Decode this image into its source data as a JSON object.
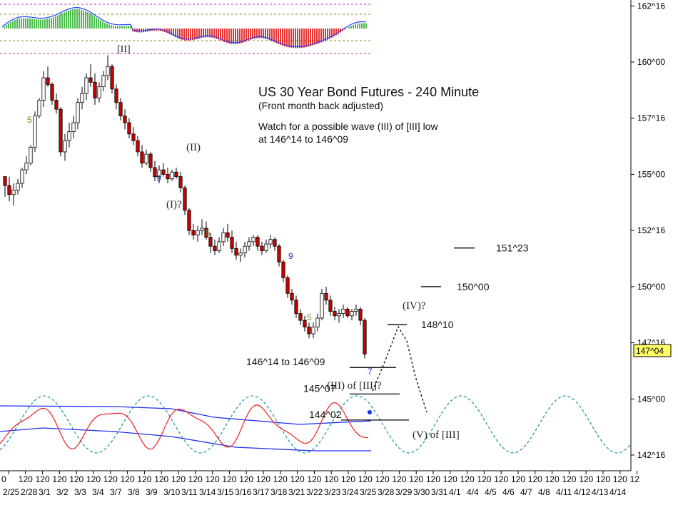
{
  "chart_data": {
    "type": "candlestick",
    "title": "US 30 Year Bond Futures - 240 Minute",
    "subtitle": "(Front month back adjusted)",
    "note_lines": [
      "Watch for a possible wave (III) of [III] low",
      "at 146^14 to 146^09"
    ],
    "y_ticks": [
      {
        "label": "162^16",
        "value": 162.5
      },
      {
        "label": "160^00",
        "value": 160.0
      },
      {
        "label": "157^16",
        "value": 157.5
      },
      {
        "label": "155^00",
        "value": 155.0
      },
      {
        "label": "152^16",
        "value": 152.5
      },
      {
        "label": "150^00",
        "value": 150.0
      },
      {
        "label": "147^16",
        "value": 147.5
      },
      {
        "label": "145^00",
        "value": 145.0
      },
      {
        "label": "142^16",
        "value": 142.5
      }
    ],
    "current_price": {
      "label": "147^04",
      "value": 147.125
    },
    "x_ticks_top": [
      "0",
      "120",
      "120",
      "120",
      "120",
      "120",
      "120",
      "120",
      "120",
      "120",
      "120",
      "120",
      "120",
      "120",
      "120",
      "120",
      "120",
      "120",
      "120",
      "120",
      "120",
      "120",
      "120",
      "120",
      "120",
      "120",
      "120",
      "120",
      "120",
      "120",
      "120",
      "120",
      "120",
      "120",
      "120",
      "120",
      "120",
      "12"
    ],
    "x_ticks_bottom": [
      "2/25",
      "2/28",
      "3/1",
      "3/2",
      "3/3",
      "3/4",
      "3/7",
      "3/8",
      "3/9",
      "3/10",
      "3/11",
      "3/14",
      "3/15",
      "3/16",
      "3/17",
      "3/18",
      "3/21",
      "3/22",
      "3/23",
      "3/24",
      "3/25",
      "3/28",
      "3/29",
      "3/30",
      "3/31",
      "4/1",
      "4/4",
      "4/5",
      "4/6",
      "4/7",
      "4/8",
      "4/11",
      "4/12",
      "4/13",
      "4/14"
    ],
    "price_levels": [
      {
        "label": "151^23",
        "value": 151.72
      },
      {
        "label": "150^00",
        "value": 150.0
      },
      {
        "label": "148^10",
        "value": 148.31
      },
      {
        "label": "146^14 to 146^09",
        "value": 146.4
      },
      {
        "label": "145^07",
        "value": 145.22
      },
      {
        "label": "144^02",
        "value": 144.06
      }
    ],
    "wave_labels": [
      "[II]",
      "(II)",
      "(I)?",
      "(IV)?",
      "(III) of [III]?",
      "(V) of [III]"
    ],
    "count_labels": [
      "5",
      "9",
      "5",
      "9",
      "5",
      "7"
    ],
    "candles": [
      [
        154.9,
        154.9,
        154.0,
        154.5
      ],
      [
        154.5,
        154.9,
        153.8,
        154.1
      ],
      [
        154.1,
        154.6,
        153.6,
        154.3
      ],
      [
        154.3,
        154.8,
        154.1,
        154.6
      ],
      [
        154.6,
        155.3,
        154.4,
        155.2
      ],
      [
        155.2,
        155.8,
        155.0,
        155.5
      ],
      [
        155.5,
        156.3,
        155.4,
        156.2
      ],
      [
        156.2,
        157.8,
        156.0,
        157.6
      ],
      [
        157.6,
        158.4,
        157.5,
        158.3
      ],
      [
        158.3,
        159.6,
        158.0,
        159.3
      ],
      [
        159.3,
        159.8,
        158.9,
        159.0
      ],
      [
        159.0,
        159.1,
        158.1,
        158.3
      ],
      [
        158.3,
        158.6,
        157.7,
        157.9
      ],
      [
        157.9,
        158.0,
        155.8,
        156.0
      ],
      [
        156.0,
        156.8,
        155.6,
        156.5
      ],
      [
        156.5,
        157.3,
        156.2,
        156.9
      ],
      [
        156.9,
        157.6,
        156.6,
        157.3
      ],
      [
        157.3,
        158.4,
        157.0,
        158.2
      ],
      [
        158.2,
        158.9,
        157.9,
        158.6
      ],
      [
        158.6,
        159.5,
        158.3,
        159.3
      ],
      [
        159.3,
        159.9,
        158.9,
        159.1
      ],
      [
        159.1,
        159.5,
        158.1,
        158.4
      ],
      [
        158.4,
        159.1,
        158.2,
        158.9
      ],
      [
        158.9,
        159.6,
        158.7,
        159.4
      ],
      [
        159.4,
        160.3,
        159.2,
        159.8
      ],
      [
        159.8,
        159.9,
        158.6,
        158.8
      ],
      [
        158.8,
        159.0,
        157.9,
        158.2
      ],
      [
        158.2,
        158.4,
        157.4,
        157.6
      ],
      [
        157.6,
        157.9,
        157.0,
        157.3
      ],
      [
        157.3,
        157.5,
        156.6,
        156.8
      ],
      [
        156.8,
        157.1,
        156.3,
        156.5
      ],
      [
        156.5,
        156.7,
        155.8,
        156.0
      ],
      [
        156.0,
        156.3,
        155.3,
        155.5
      ],
      [
        155.5,
        156.1,
        155.4,
        155.9
      ],
      [
        155.9,
        156.0,
        155.1,
        155.3
      ],
      [
        155.3,
        155.6,
        154.7,
        154.9
      ],
      [
        154.9,
        155.4,
        154.6,
        155.2
      ],
      [
        155.2,
        155.5,
        154.9,
        155.0
      ],
      [
        155.0,
        155.3,
        154.6,
        154.8
      ],
      [
        154.8,
        155.2,
        154.7,
        155.1
      ],
      [
        155.1,
        155.3,
        154.8,
        154.9
      ],
      [
        154.9,
        155.1,
        154.2,
        154.4
      ],
      [
        154.4,
        154.5,
        153.2,
        153.4
      ],
      [
        153.4,
        153.5,
        152.3,
        152.5
      ],
      [
        152.5,
        152.8,
        152.1,
        152.3
      ],
      [
        152.3,
        152.7,
        152.0,
        152.5
      ],
      [
        152.5,
        153.0,
        152.3,
        152.6
      ],
      [
        152.6,
        152.9,
        152.1,
        152.2
      ],
      [
        152.2,
        152.4,
        151.5,
        151.8
      ],
      [
        151.8,
        152.1,
        151.4,
        151.6
      ],
      [
        151.6,
        152.2,
        151.5,
        152.0
      ],
      [
        152.0,
        152.6,
        151.8,
        152.4
      ],
      [
        152.4,
        152.8,
        152.0,
        152.2
      ],
      [
        152.2,
        152.5,
        151.5,
        151.7
      ],
      [
        151.7,
        152.0,
        151.2,
        151.4
      ],
      [
        151.4,
        151.7,
        151.1,
        151.5
      ],
      [
        151.5,
        152.0,
        151.3,
        151.8
      ],
      [
        151.8,
        152.2,
        151.6,
        152.0
      ],
      [
        152.0,
        152.3,
        151.8,
        152.2
      ],
      [
        152.2,
        152.3,
        151.6,
        151.8
      ],
      [
        151.8,
        152.0,
        151.4,
        151.6
      ],
      [
        151.6,
        152.1,
        151.5,
        151.9
      ],
      [
        151.9,
        152.3,
        151.7,
        152.1
      ],
      [
        152.1,
        152.2,
        151.6,
        151.8
      ],
      [
        151.8,
        151.9,
        150.9,
        151.1
      ],
      [
        151.1,
        151.2,
        150.2,
        150.4
      ],
      [
        150.4,
        150.5,
        149.5,
        149.7
      ],
      [
        149.7,
        149.9,
        149.2,
        149.4
      ],
      [
        149.4,
        149.6,
        148.6,
        148.8
      ],
      [
        148.8,
        149.0,
        148.3,
        148.5
      ],
      [
        148.5,
        148.7,
        148.0,
        148.2
      ],
      [
        148.2,
        148.4,
        147.7,
        147.9
      ],
      [
        147.9,
        148.4,
        147.7,
        148.2
      ],
      [
        148.2,
        148.8,
        148.0,
        148.6
      ],
      [
        148.6,
        149.9,
        148.5,
        149.7
      ],
      [
        149.7,
        150.0,
        149.2,
        149.4
      ],
      [
        149.4,
        149.6,
        148.7,
        148.9
      ],
      [
        148.9,
        149.1,
        148.5,
        148.7
      ],
      [
        148.7,
        149.0,
        148.4,
        148.8
      ],
      [
        148.8,
        149.2,
        148.6,
        149.0
      ],
      [
        149.0,
        149.1,
        148.6,
        148.7
      ],
      [
        148.7,
        149.0,
        148.5,
        148.9
      ],
      [
        148.9,
        149.2,
        148.7,
        149.0
      ],
      [
        149.0,
        149.1,
        148.3,
        148.5
      ],
      [
        148.5,
        148.6,
        146.8,
        147.0
      ]
    ],
    "projection_path": [
      [
        148.3,
        0
      ],
      [
        147.1,
        1
      ],
      [
        145.9,
        2
      ],
      [
        144.8,
        3
      ]
    ],
    "histogram_upper": "MACD histogram (green above zero, red below)",
    "oscillator_panel": {
      "sine_cycle": "dashed teal",
      "bands": "blue",
      "oscillator": "red"
    }
  },
  "colors": {
    "bull_body": "#ffffff",
    "bear_body": "#cc0000",
    "wick": "#000000",
    "level_line": "#000000",
    "current_price_bg": "#ffff66",
    "macd_pos": "#22aa22",
    "macd_neg": "#dd0000",
    "macd_line": "#1f3fff",
    "guide_magenta": "#b030b0",
    "guide_olive": "#8a8a20",
    "count_olive": "#808020",
    "count_blue": "#2030cc",
    "cycle_teal": "#2a9aa8",
    "band_blue": "#1f2ff0",
    "osc_red": "#ee2020"
  }
}
